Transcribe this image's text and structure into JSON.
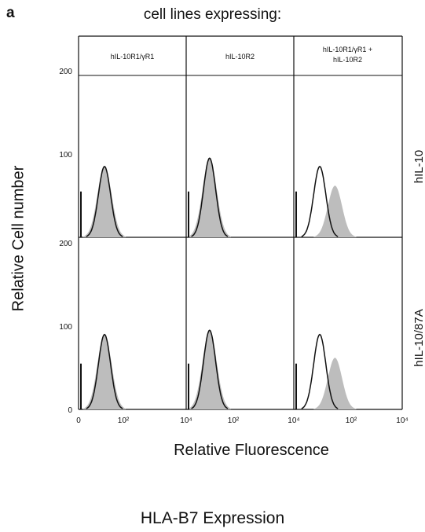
{
  "panel_letter": "a",
  "header": "cell lines expressing:",
  "y_axis_title": "Relative Cell number",
  "x_axis_title": "Relative Fluorescence",
  "caption": "HLA-B7 Expression",
  "chart_data": {
    "type": "histogram-grid",
    "columns": [
      "hIL-10R1/γR1",
      "hIL-10R2",
      "hIL-10R1/γR1 +\nhIL-10R2"
    ],
    "rows": [
      "hIL-10",
      "hIL-10/87A"
    ],
    "y_ticks": [
      "200",
      "100",
      "0"
    ],
    "top_y_ticks": [
      "200",
      "100"
    ],
    "x_tick_labels": [
      "0",
      "10²",
      "10⁴",
      "10²",
      "10⁴",
      "10²",
      "10⁴"
    ],
    "y_range": [
      0,
      200
    ],
    "x_range_log": [
      0,
      4
    ],
    "series_style": {
      "treated": "outline",
      "control": "shaded"
    },
    "histograms": [
      {
        "row": 0,
        "col": 0,
        "shaded_peak_log": 0.9,
        "shaded_height": 85,
        "outline_peak_log": 0.9,
        "outline_height": 85
      },
      {
        "row": 0,
        "col": 1,
        "shaded_peak_log": 0.8,
        "shaded_height": 95,
        "outline_peak_log": 0.8,
        "outline_height": 95
      },
      {
        "row": 0,
        "col": 2,
        "shaded_peak_log": 1.5,
        "shaded_height": 62,
        "outline_peak_log": 0.9,
        "outline_height": 85
      },
      {
        "row": 1,
        "col": 0,
        "shaded_peak_log": 0.9,
        "shaded_height": 90,
        "outline_peak_log": 0.9,
        "outline_height": 90
      },
      {
        "row": 1,
        "col": 1,
        "shaded_peak_log": 0.8,
        "shaded_height": 95,
        "outline_peak_log": 0.8,
        "outline_height": 95
      },
      {
        "row": 1,
        "col": 2,
        "shaded_peak_log": 1.5,
        "shaded_height": 62,
        "outline_peak_log": 0.9,
        "outline_height": 90
      }
    ]
  }
}
